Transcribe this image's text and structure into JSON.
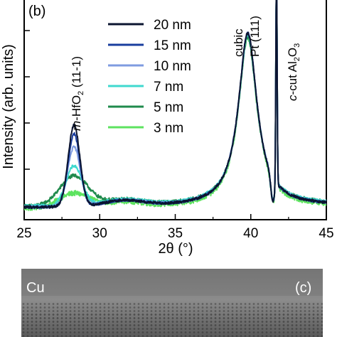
{
  "chart_data": {
    "type": "line",
    "panel_label": "(b)",
    "xlabel": "2θ (°)",
    "ylabel": "Intensity (arb. units)",
    "xlim": [
      25,
      45
    ],
    "ylim": [
      0,
      10
    ],
    "xticks": [
      "25",
      "30",
      "35",
      "40",
      "45"
    ],
    "legend": "top-center",
    "annotations": [
      {
        "text": "m-HfO2 (11-1)",
        "italic_prefix": "m",
        "x": 28.3
      },
      {
        "text": "cubic",
        "x": 39.5
      },
      {
        "text": "Pt (111)",
        "x": 40.3
      },
      {
        "text": "c-cut Al2O3",
        "italic_prefix": "c",
        "x": 42.3
      }
    ],
    "series": [
      {
        "name": "20 nm",
        "color": "#0b1430",
        "hfo2_peak": 3.7,
        "hfo2_width": 0.55,
        "bg": 0.55,
        "pt_peak": 8.6,
        "noise": 0.06
      },
      {
        "name": "15 nm",
        "color": "#1a3d9e",
        "hfo2_peak": 3.3,
        "hfo2_width": 0.55,
        "bg": 0.55,
        "pt_peak": 8.6,
        "noise": 0.06
      },
      {
        "name": "10 nm",
        "color": "#7f9be0",
        "hfo2_peak": 2.7,
        "hfo2_width": 0.6,
        "bg": 0.55,
        "pt_peak": 8.6,
        "noise": 0.06
      },
      {
        "name": "7 nm",
        "color": "#3fd9cf",
        "hfo2_peak": 1.8,
        "hfo2_width": 0.75,
        "bg": 0.6,
        "pt_peak": 8.5,
        "noise": 0.07
      },
      {
        "name": "5 nm",
        "color": "#1f8a4c",
        "hfo2_peak": 1.35,
        "hfo2_width": 1.3,
        "bg": 0.6,
        "pt_peak": 8.4,
        "noise": 0.08
      },
      {
        "name": "3 nm",
        "color": "#5de35f",
        "hfo2_peak": 0.65,
        "hfo2_width": 1.4,
        "bg": 0.5,
        "pt_peak": 8.4,
        "noise": 0.12
      }
    ]
  },
  "tem": {
    "label_left": "Cu",
    "label_right": "(c)"
  }
}
